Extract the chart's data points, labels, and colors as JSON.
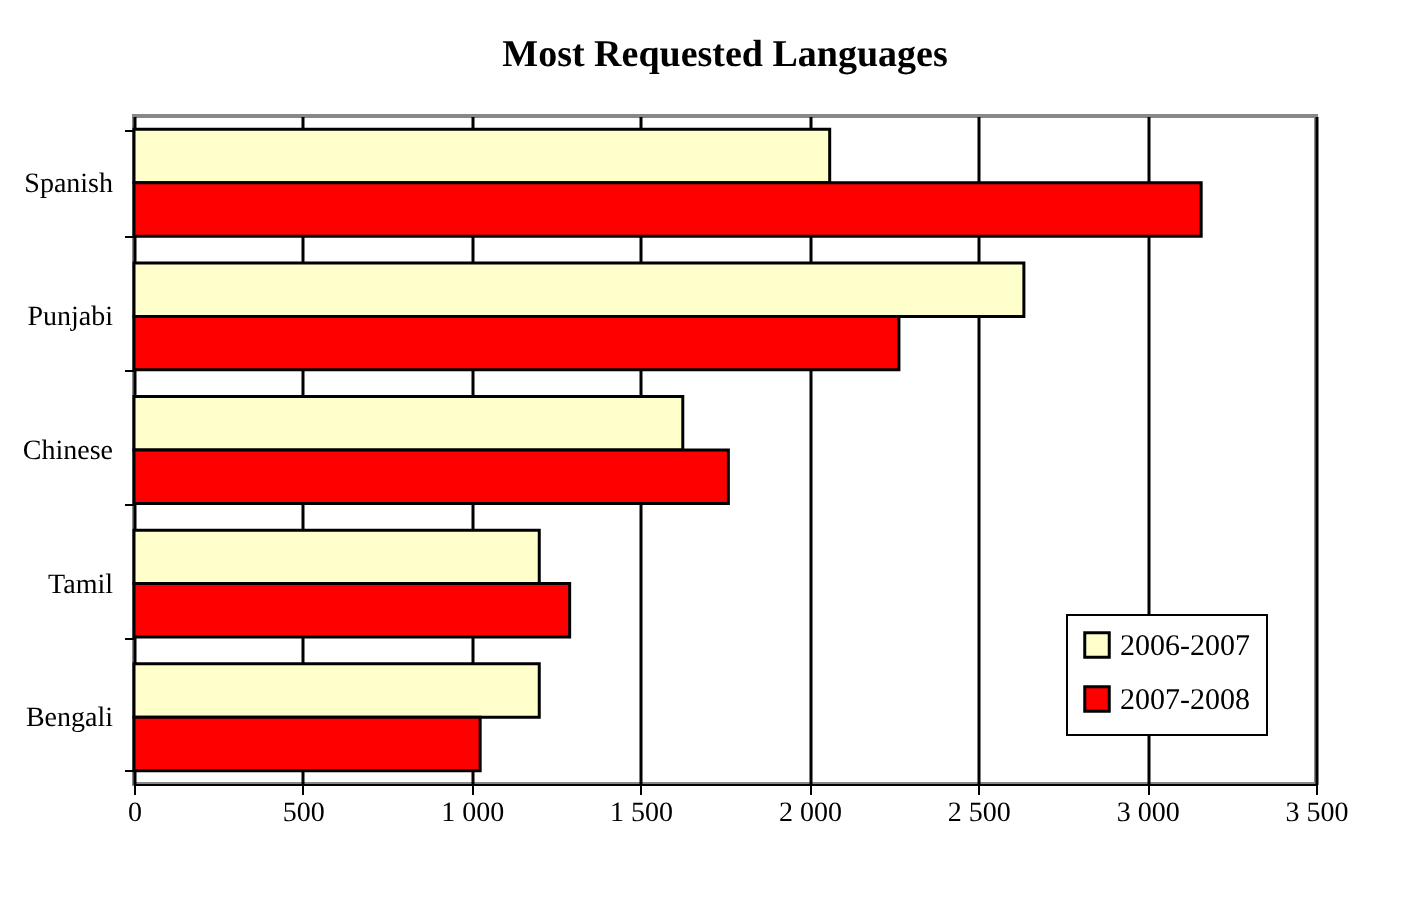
{
  "chart_data": {
    "type": "bar",
    "orientation": "horizontal",
    "title": "Most Requested Languages",
    "categories": [
      "Spanish",
      "Punjabi",
      "Chinese",
      "Tamil",
      "Bengali"
    ],
    "series": [
      {
        "name": "2006-2007",
        "color": "#ffffcc",
        "values": [
          2060,
          2635,
          1625,
          1200,
          1200
        ]
      },
      {
        "name": "2007-2008",
        "color": "#ff0000",
        "values": [
          3160,
          2265,
          1760,
          1290,
          1025
        ]
      }
    ],
    "xlim": [
      0,
      3500
    ],
    "xticks": [
      0,
      500,
      {
        "value": 1000,
        "label": "1 000"
      },
      {
        "value": 1500,
        "label": "1 500"
      },
      {
        "value": 2000,
        "label": "2 000"
      },
      {
        "value": 2500,
        "label": "2 500"
      },
      {
        "value": 3000,
        "label": "3 000"
      },
      {
        "value": 3500,
        "label": "3 500"
      }
    ],
    "grid": "x",
    "legend": "bottom right"
  }
}
